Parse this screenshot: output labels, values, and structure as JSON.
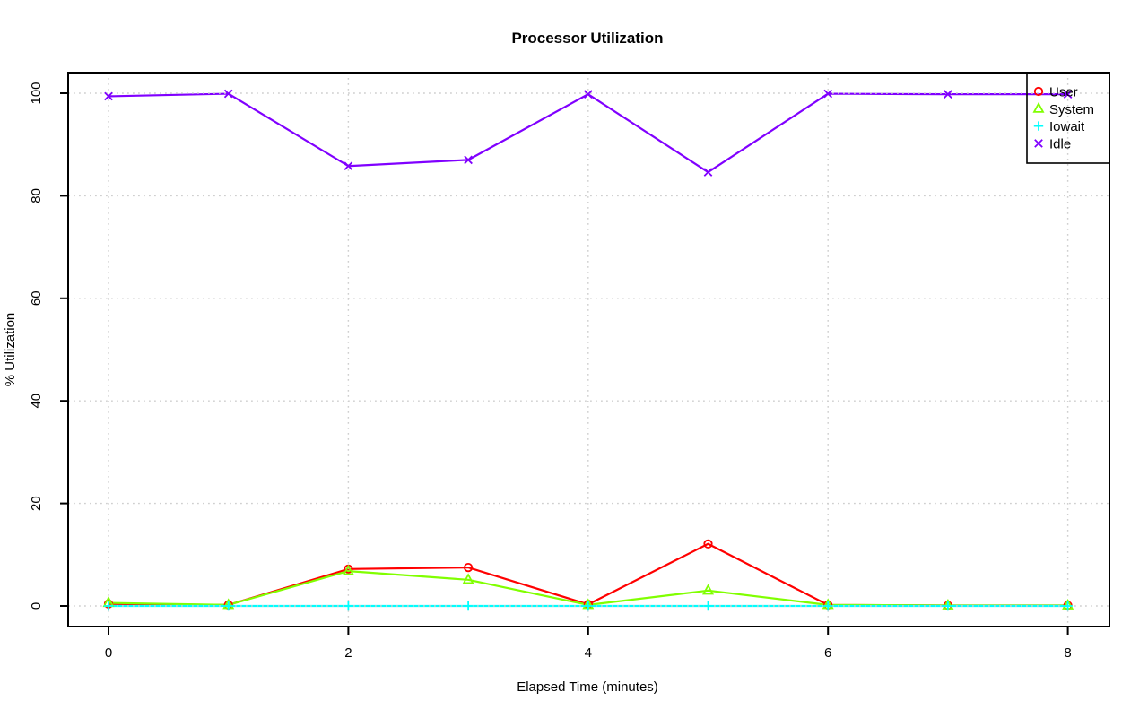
{
  "title": "Processor Utilization",
  "colors": {
    "background": "#FFFFFF",
    "axis": "#000000",
    "grid": "#CFCFCF",
    "user": "#FF0000",
    "system": "#80FF00",
    "iowait": "#00FFFF",
    "idle": "#8000FF"
  },
  "chart_data": {
    "type": "line",
    "title": "Processor Utilization",
    "xlabel": "Elapsed Time (minutes)",
    "ylabel": "% Utilization",
    "x": [
      0,
      1,
      2,
      3,
      4,
      5,
      6,
      7,
      8
    ],
    "xticks": [
      0,
      2,
      4,
      6,
      8
    ],
    "yticks": [
      0,
      20,
      40,
      60,
      80,
      100
    ],
    "xlim": [
      -0.35,
      8.35
    ],
    "ylim": [
      -4,
      104
    ],
    "grid": "dotted, light gray, at every axis tick",
    "legend_position": "topright",
    "series": [
      {
        "name": "User",
        "color": "#FF0000",
        "marker": "circle",
        "values": [
          0.4,
          0.2,
          7.2,
          7.5,
          0.3,
          12.1,
          0.2,
          0.1,
          0.1
        ]
      },
      {
        "name": "System",
        "color": "#80FF00",
        "marker": "triangle",
        "values": [
          0.6,
          0.2,
          6.8,
          5.1,
          0.2,
          3.0,
          0.2,
          0.1,
          0.1
        ]
      },
      {
        "name": "Iowait",
        "color": "#00FFFF",
        "marker": "plus",
        "values": [
          0,
          0,
          0,
          0,
          0,
          0,
          0,
          0,
          0
        ]
      },
      {
        "name": "Idle",
        "color": "#8000FF",
        "marker": "x",
        "values": [
          99.4,
          99.9,
          85.8,
          87.0,
          99.8,
          84.6,
          99.9,
          99.8,
          99.8
        ]
      }
    ]
  }
}
